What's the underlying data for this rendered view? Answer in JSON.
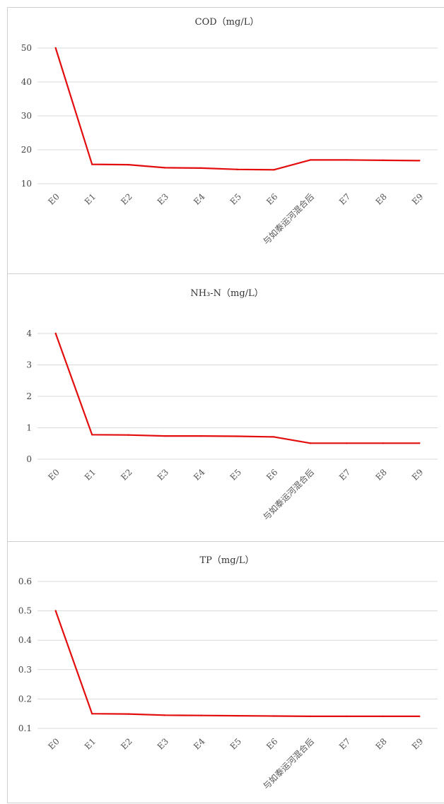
{
  "chart_data": [
    {
      "type": "line",
      "title": "COD（mg/L）",
      "categories": [
        "E0",
        "E1",
        "E2",
        "E3",
        "E4",
        "E5",
        "E6",
        "与如泰运河混合后",
        "E7",
        "E8",
        "E9"
      ],
      "series": [
        {
          "values": [
            50,
            15.7,
            15.6,
            14.7,
            14.6,
            14.2,
            14.1,
            17.0,
            17.0,
            16.9,
            16.8
          ]
        }
      ],
      "yticks": [
        "50",
        "40",
        "30",
        "20",
        "10"
      ],
      "ylim": [
        10,
        50
      ],
      "grid": true,
      "color": "#e30d0d"
    },
    {
      "type": "line",
      "title": "NH₃-N（mg/L）",
      "categories": [
        "E0",
        "E1",
        "E2",
        "E3",
        "E4",
        "E5",
        "E6",
        "与如泰运河混合后",
        "E7",
        "E8",
        "E9"
      ],
      "series": [
        {
          "values": [
            4.0,
            0.78,
            0.77,
            0.74,
            0.74,
            0.73,
            0.71,
            0.51,
            0.51,
            0.51,
            0.51
          ]
        }
      ],
      "yticks": [
        "4",
        "3",
        "2",
        "1",
        "0"
      ],
      "ylim": [
        0,
        4
      ],
      "grid": true,
      "color": "#e30d0d"
    },
    {
      "type": "line",
      "title": "TP（mg/L）",
      "categories": [
        "E0",
        "E1",
        "E2",
        "E3",
        "E4",
        "E5",
        "E6",
        "与如泰运河混合后",
        "E7",
        "E8",
        "E9"
      ],
      "series": [
        {
          "values": [
            0.5,
            0.15,
            0.149,
            0.145,
            0.144,
            0.143,
            0.142,
            0.141,
            0.141,
            0.141,
            0.141
          ]
        }
      ],
      "yticks": [
        "0.6",
        "0.5",
        "0.4",
        "0.3",
        "0.2",
        "0.1"
      ],
      "ylim": [
        0.1,
        0.6
      ],
      "grid": true,
      "color": "#e30d0d"
    }
  ]
}
